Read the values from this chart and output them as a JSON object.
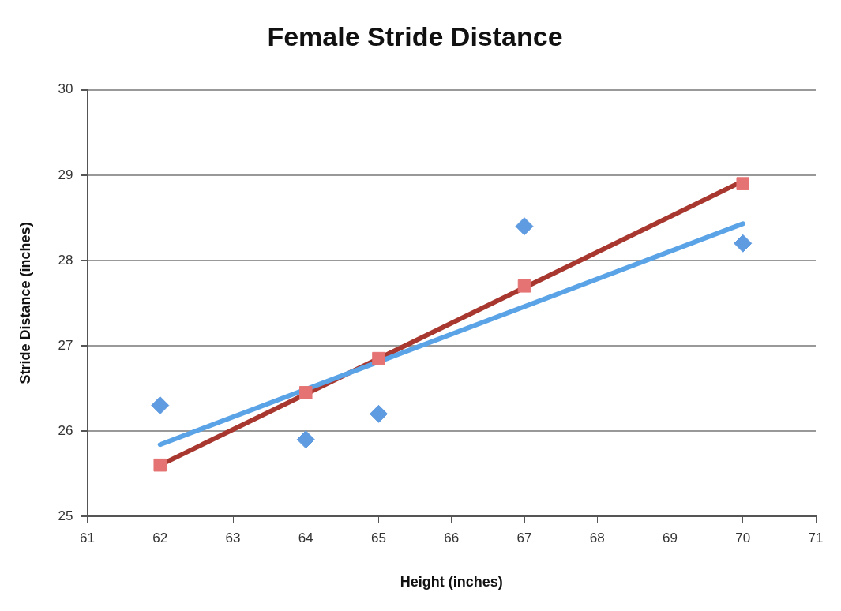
{
  "chart_data": {
    "type": "scatter",
    "title": "Female Stride Distance",
    "xlabel": "Height (inches)",
    "ylabel": "Stride Distance (inches)",
    "xlim": [
      61,
      71
    ],
    "xticks": [
      61,
      62,
      63,
      64,
      65,
      66,
      67,
      68,
      69,
      70,
      71
    ],
    "ylim": [
      25,
      30
    ],
    "yticks": [
      25,
      26,
      27,
      28,
      29,
      30
    ],
    "grid": "y",
    "legend": false,
    "series": [
      {
        "type": "scatter",
        "marker": "diamond",
        "color": "#5f9be0",
        "x": [
          62,
          64,
          65,
          67,
          70
        ],
        "values": [
          26.3,
          25.9,
          26.2,
          28.4,
          28.2
        ]
      },
      {
        "type": "scatter",
        "marker": "square",
        "color": "#e57373",
        "x": [
          62,
          64,
          65,
          67,
          70
        ],
        "values": [
          25.6,
          26.45,
          26.85,
          27.7,
          28.9
        ]
      },
      {
        "type": "line",
        "marker": "none",
        "color": "#5aa3e6",
        "x": [
          62,
          70
        ],
        "values": [
          25.84,
          28.43
        ]
      },
      {
        "type": "line",
        "marker": "none",
        "color": "#a8382f",
        "x": [
          62,
          70
        ],
        "values": [
          25.6,
          28.93
        ]
      }
    ]
  }
}
